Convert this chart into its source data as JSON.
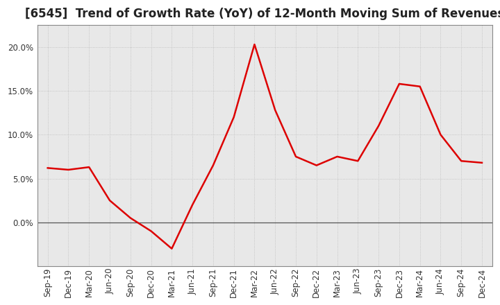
{
  "title": "[6545]  Trend of Growth Rate (YoY) of 12-Month Moving Sum of Revenues",
  "line_color": "#dd0000",
  "line_width": 1.8,
  "background_color": "#ffffff",
  "plot_bg_color": "#e8e8e8",
  "grid_color": "#bbbbbb",
  "x_labels": [
    "Sep-19",
    "Dec-19",
    "Mar-20",
    "Jun-20",
    "Sep-20",
    "Dec-20",
    "Mar-21",
    "Jun-21",
    "Sep-21",
    "Dec-21",
    "Mar-22",
    "Jun-22",
    "Sep-22",
    "Dec-22",
    "Mar-23",
    "Jun-23",
    "Sep-23",
    "Dec-23",
    "Mar-24",
    "Jun-24",
    "Sep-24",
    "Dec-24"
  ],
  "y_values": [
    0.062,
    0.06,
    0.063,
    0.025,
    0.005,
    -0.01,
    -0.03,
    0.02,
    0.065,
    0.12,
    0.203,
    0.128,
    0.075,
    0.065,
    0.075,
    0.07,
    0.11,
    0.158,
    0.155,
    0.1,
    0.07,
    0.068
  ],
  "ylim": [
    -0.05,
    0.225
  ],
  "yticks": [
    0.0,
    0.05,
    0.1,
    0.15,
    0.2
  ],
  "title_fontsize": 12,
  "tick_fontsize": 8.5,
  "zero_line_color": "#555555"
}
